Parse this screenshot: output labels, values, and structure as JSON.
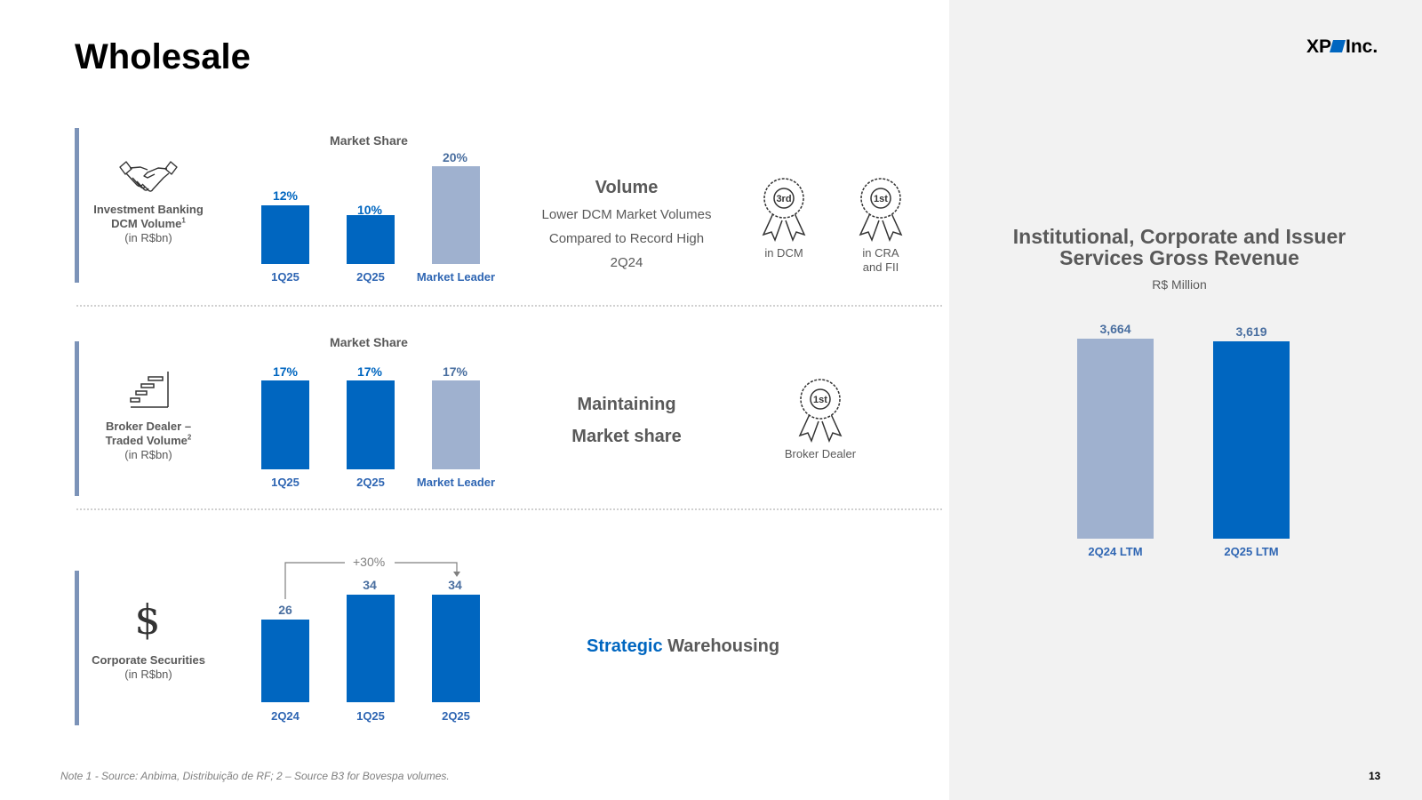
{
  "page": {
    "title": "Wholesale",
    "logo_text": "XP Inc.",
    "note": "Note 1 - Source: Anbima, Distribuição de RF; 2 – Source B3 for Bovespa volumes.",
    "page_number": "13"
  },
  "colors": {
    "primary_blue": "#0066c0",
    "light_blue": "#9fb1cf",
    "accent": "#7c93b8",
    "panel_bg": "#f2f2f2"
  },
  "sections": {
    "ib": {
      "icon": "handshake-icon",
      "label_line1": "Investment Banking",
      "label_line2": "DCM Volume",
      "label_sup": "1",
      "label_unit": "(in R$bn)",
      "chart_title": "Market Share",
      "mid_title": "Volume",
      "mid_line1": "Lower DCM Market Volumes",
      "mid_line2": "Compared to Record High",
      "mid_line3": "2Q24",
      "award1_rank": "3rd",
      "award1_label": "in DCM",
      "award2_rank": "1st",
      "award2_label1": "in CRA",
      "award2_label2": "and FII"
    },
    "bd": {
      "icon": "stairs-chart-icon",
      "label_line1": "Broker Dealer –",
      "label_line2": "Traded Volume",
      "label_sup": "2",
      "label_unit": "(in R$bn)",
      "chart_title": "Market Share",
      "mid_line1": "Maintaining",
      "mid_line2": "Market share",
      "award_rank": "1st",
      "award_label": "Broker Dealer"
    },
    "cs": {
      "icon": "dollar-icon",
      "label_line1": "Corporate Securities",
      "label_unit": "(in R$bn)",
      "growth": "+30%",
      "warehouse_highlight": "Strategic",
      "warehouse_rest": "Warehousing"
    },
    "revenue": {
      "title_line1": "Institutional, Corporate and Issuer",
      "title_line2": "Services Gross Revenue",
      "subtitle": "R$ Million"
    }
  },
  "chart_data": [
    {
      "type": "bar",
      "title": "Market Share",
      "categories": [
        "1Q25",
        "2Q25",
        "Market Leader"
      ],
      "values": [
        12,
        10,
        20
      ],
      "value_labels": [
        "12%",
        "10%",
        "20%"
      ],
      "ylim": [
        0,
        20
      ]
    },
    {
      "type": "bar",
      "title": "Market Share",
      "categories": [
        "1Q25",
        "2Q25",
        "Market Leader"
      ],
      "values": [
        17,
        17,
        17
      ],
      "value_labels": [
        "17%",
        "17%",
        "17%"
      ],
      "ylim": [
        0,
        17
      ]
    },
    {
      "type": "bar",
      "title": "Corporate Securities (in R$bn)",
      "categories": [
        "2Q24",
        "1Q25",
        "2Q25"
      ],
      "values": [
        26,
        34,
        34
      ],
      "value_labels": [
        "26",
        "34",
        "34"
      ],
      "ylim": [
        0,
        34
      ]
    },
    {
      "type": "bar",
      "title": "Institutional, Corporate and Issuer Services Gross Revenue",
      "ylabel": "R$ Million",
      "categories": [
        "2Q24 LTM",
        "2Q25 LTM"
      ],
      "values": [
        3664,
        3619
      ],
      "value_labels": [
        "3,664",
        "3,619"
      ],
      "ylim": [
        0,
        3664
      ]
    }
  ]
}
